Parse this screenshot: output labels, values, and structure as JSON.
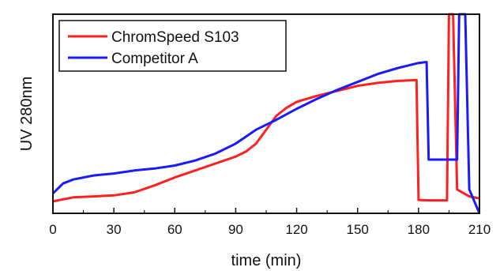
{
  "chart_data": {
    "type": "line",
    "title": "",
    "xlabel": "time (min)",
    "ylabel": "UV 280nm",
    "xlim": [
      0,
      210
    ],
    "ylim": [
      0,
      1
    ],
    "xticks": [
      0,
      30,
      60,
      90,
      120,
      150,
      180,
      210
    ],
    "y_tick_labels_shown": false,
    "grid": false,
    "legend_position": "top-left",
    "series": [
      {
        "name": "ChromSpeed S103",
        "color": "#ff2020",
        "points": [
          [
            0,
            0.06
          ],
          [
            10,
            0.08
          ],
          [
            20,
            0.085
          ],
          [
            30,
            0.09
          ],
          [
            40,
            0.105
          ],
          [
            50,
            0.14
          ],
          [
            60,
            0.18
          ],
          [
            70,
            0.215
          ],
          [
            80,
            0.25
          ],
          [
            90,
            0.285
          ],
          [
            95,
            0.31
          ],
          [
            100,
            0.35
          ],
          [
            105,
            0.42
          ],
          [
            110,
            0.49
          ],
          [
            115,
            0.53
          ],
          [
            120,
            0.56
          ],
          [
            130,
            0.59
          ],
          [
            140,
            0.615
          ],
          [
            150,
            0.64
          ],
          [
            160,
            0.655
          ],
          [
            170,
            0.665
          ],
          [
            179,
            0.67
          ],
          [
            180,
            0.067
          ],
          [
            186,
            0.065
          ],
          [
            194,
            0.065
          ],
          [
            195,
            1.0
          ],
          [
            197,
            1.0
          ],
          [
            199,
            0.12
          ],
          [
            205,
            0.085
          ],
          [
            210,
            0.075
          ]
        ]
      },
      {
        "name": "Competitor A",
        "color": "#1a1aff",
        "points": [
          [
            0,
            0.1
          ],
          [
            5,
            0.15
          ],
          [
            10,
            0.17
          ],
          [
            20,
            0.19
          ],
          [
            30,
            0.2
          ],
          [
            40,
            0.215
          ],
          [
            50,
            0.225
          ],
          [
            60,
            0.24
          ],
          [
            70,
            0.265
          ],
          [
            80,
            0.3
          ],
          [
            90,
            0.35
          ],
          [
            100,
            0.42
          ],
          [
            110,
            0.47
          ],
          [
            120,
            0.525
          ],
          [
            130,
            0.575
          ],
          [
            140,
            0.62
          ],
          [
            150,
            0.66
          ],
          [
            160,
            0.7
          ],
          [
            170,
            0.73
          ],
          [
            180,
            0.755
          ],
          [
            184,
            0.76
          ],
          [
            185,
            0.27
          ],
          [
            190,
            0.27
          ],
          [
            199,
            0.27
          ],
          [
            200,
            1.0
          ],
          [
            203,
            1.0
          ],
          [
            205,
            0.12
          ],
          [
            210,
            0.0
          ]
        ]
      }
    ]
  }
}
